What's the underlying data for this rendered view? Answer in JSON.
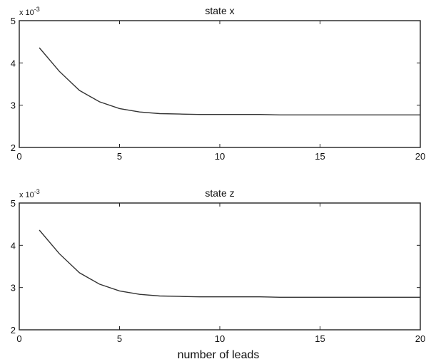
{
  "figure": {
    "xlabel": "number of leads"
  },
  "chart_data": [
    {
      "type": "line",
      "title": "state x",
      "xlabel": "",
      "ylabel": "",
      "y_scale_label": "x 10",
      "y_scale_exponent": "-3",
      "xlim": [
        0,
        20
      ],
      "ylim": [
        2,
        5
      ],
      "xticks": [
        "0",
        "5",
        "10",
        "15",
        "20"
      ],
      "yticks": [
        "2",
        "3",
        "4",
        "5"
      ],
      "grid": false,
      "x": [
        1,
        2,
        3,
        4,
        5,
        6,
        7,
        8,
        9,
        10,
        11,
        12,
        13,
        14,
        15,
        16,
        17,
        18,
        19,
        20
      ],
      "series": [
        {
          "values": [
            4.36,
            3.8,
            3.35,
            3.08,
            2.92,
            2.84,
            2.8,
            2.79,
            2.78,
            2.78,
            2.78,
            2.78,
            2.77,
            2.77,
            2.77,
            2.77,
            2.77,
            2.77,
            2.77,
            2.77
          ]
        }
      ]
    },
    {
      "type": "line",
      "title": "state z",
      "xlabel": "number of leads",
      "ylabel": "",
      "y_scale_label": "x 10",
      "y_scale_exponent": "-3",
      "xlim": [
        0,
        20
      ],
      "ylim": [
        2,
        5
      ],
      "xticks": [
        "0",
        "5",
        "10",
        "15",
        "20"
      ],
      "yticks": [
        "2",
        "3",
        "4",
        "5"
      ],
      "grid": false,
      "x": [
        1,
        2,
        3,
        4,
        5,
        6,
        7,
        8,
        9,
        10,
        11,
        12,
        13,
        14,
        15,
        16,
        17,
        18,
        19,
        20
      ],
      "series": [
        {
          "values": [
            4.36,
            3.8,
            3.35,
            3.08,
            2.92,
            2.84,
            2.8,
            2.79,
            2.78,
            2.78,
            2.78,
            2.78,
            2.77,
            2.77,
            2.77,
            2.77,
            2.77,
            2.77,
            2.77,
            2.77
          ]
        }
      ]
    }
  ]
}
